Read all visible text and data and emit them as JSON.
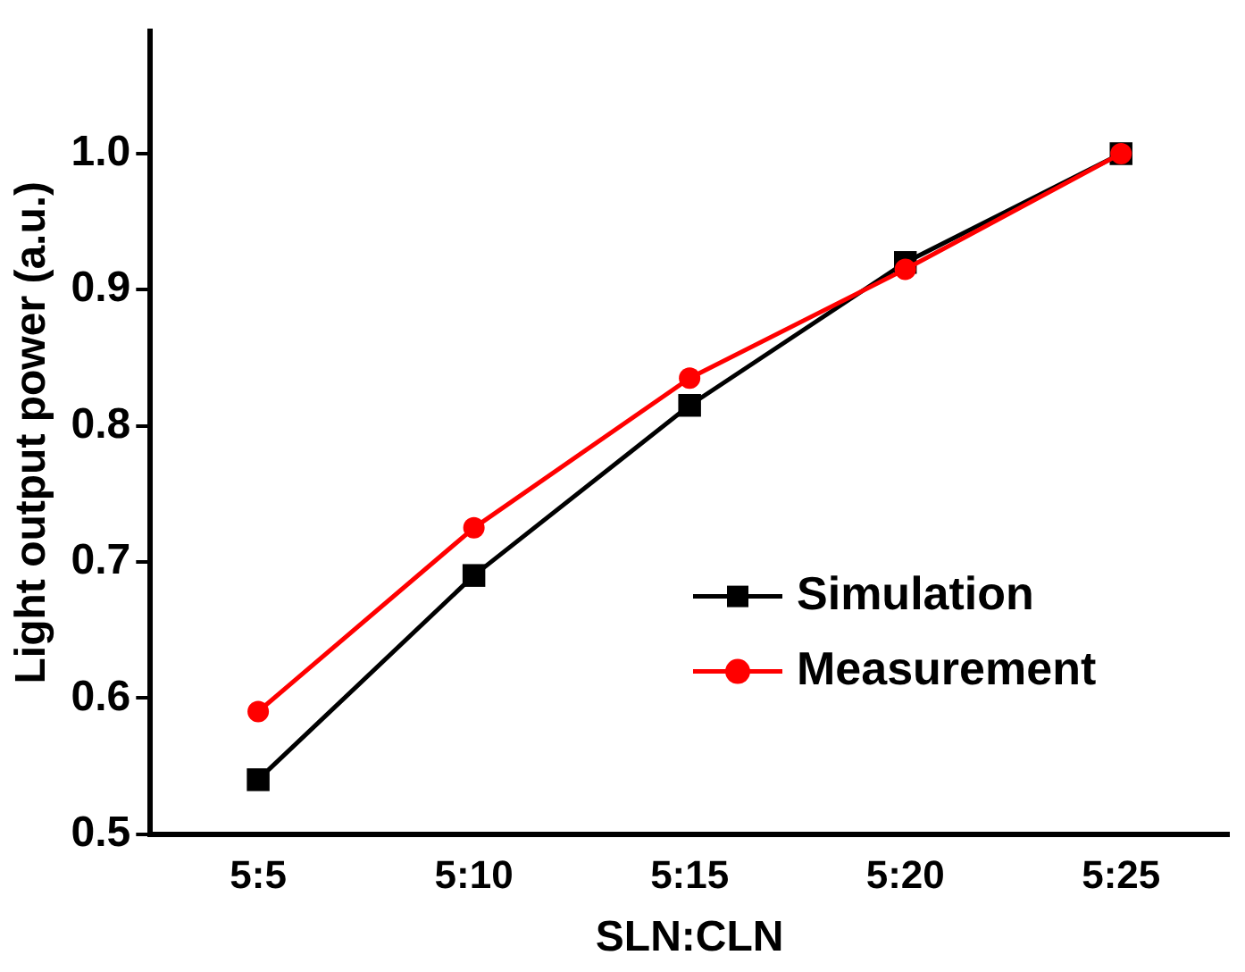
{
  "chart_data": {
    "type": "line",
    "xlabel": "SLN:CLN",
    "ylabel": "Light output power (a.u.)",
    "categories": [
      "5:5",
      "5:10",
      "5:15",
      "5:20",
      "5:25"
    ],
    "series": [
      {
        "name": "Simulation",
        "color": "#000000",
        "marker": "square",
        "values": [
          0.54,
          0.69,
          0.815,
          0.92,
          1.0
        ]
      },
      {
        "name": "Measurement",
        "color": "#ff0000",
        "marker": "circle",
        "values": [
          0.59,
          0.725,
          0.835,
          0.915,
          1.0
        ]
      }
    ],
    "ylim": [
      0.5,
      1.09
    ],
    "yticks": [
      0.5,
      0.6,
      0.7,
      0.8,
      0.9,
      {
        "value": 1,
        "label": "1.0"
      }
    ],
    "grid": false,
    "legend": "bottom right",
    "line_style": "solid"
  }
}
